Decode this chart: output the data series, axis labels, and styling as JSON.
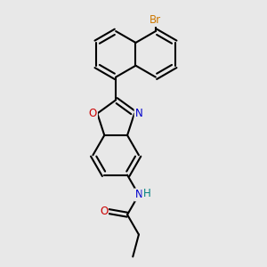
{
  "background_color": "#e8e8e8",
  "bond_color": "#000000",
  "bond_width": 1.5,
  "figsize": [
    3.0,
    3.0
  ],
  "dpi": 100,
  "xlim": [
    -1.6,
    1.6
  ],
  "ylim": [
    -3.0,
    3.0
  ],
  "br_color": "#cc7700",
  "o_color": "#cc0000",
  "n_color": "#0000cc",
  "h_color": "#008080"
}
